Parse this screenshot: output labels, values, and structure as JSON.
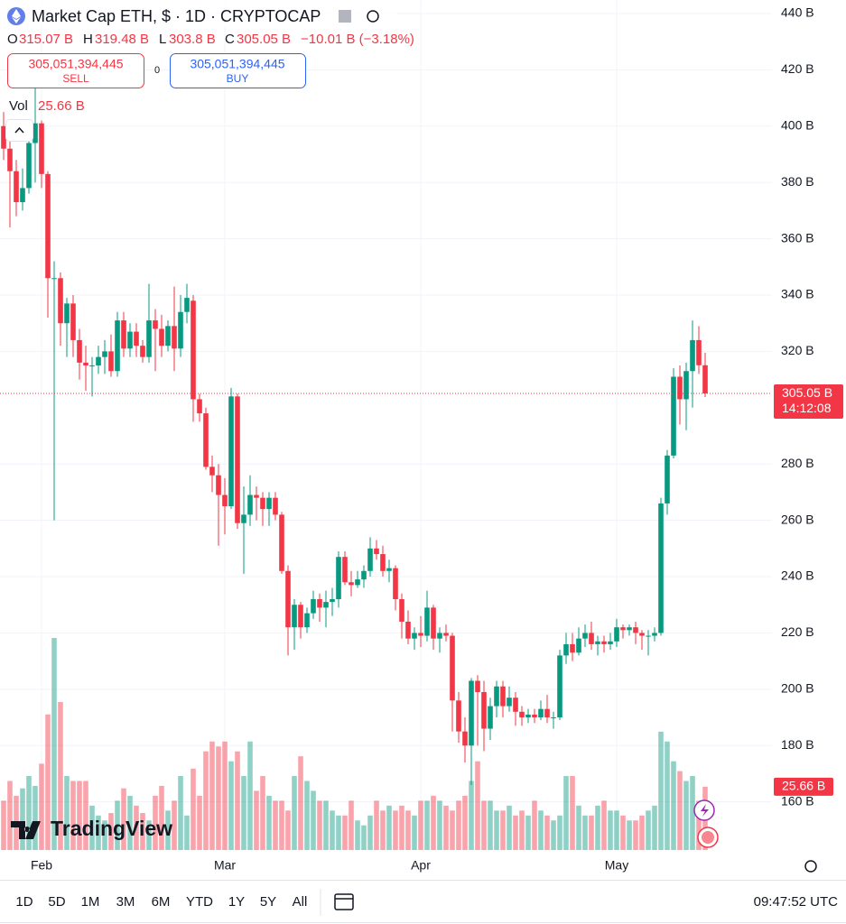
{
  "chart_data": {
    "type": "candlestick",
    "title": "Market Cap ETH, $ · 1D · CRYPTOCAP",
    "ohlc_keys": [
      "O",
      "H",
      "L",
      "C"
    ],
    "value_labels": {
      "o": "315.07 B",
      "h": "319.48 B",
      "l": "303.8 B",
      "c": "305.05 B",
      "v": "25.66 B"
    },
    "change_label": "−10.01 B (−3.18%)",
    "volume_title": "Vol",
    "countdown": "14:12:08",
    "up_color": "#089981",
    "down_color": "#f23645",
    "ylim": [
      142.9,
      444.8
    ],
    "yticks": [
      {
        "value": 160,
        "label": "160 B"
      },
      {
        "value": 180,
        "label": "180 B"
      },
      {
        "value": 200,
        "label": "200 B"
      },
      {
        "value": 220,
        "label": "220 B"
      },
      {
        "value": 240,
        "label": "240 B"
      },
      {
        "value": 260,
        "label": "260 B"
      },
      {
        "value": 280,
        "label": "280 B"
      },
      {
        "value": 320,
        "label": "320 B"
      },
      {
        "value": 340,
        "label": "340 B"
      },
      {
        "value": 360,
        "label": "360 B"
      },
      {
        "value": 380,
        "label": "380 B"
      },
      {
        "value": 400,
        "label": "400 B"
      },
      {
        "value": 420,
        "label": "420 B"
      },
      {
        "value": 440,
        "label": "440 B"
      }
    ],
    "xticks": [
      {
        "value": 6,
        "label": "Feb"
      },
      {
        "value": 35,
        "label": "Mar"
      },
      {
        "value": 66,
        "label": "Apr"
      },
      {
        "value": 97,
        "label": "May"
      }
    ],
    "grid": true,
    "candles": [
      {
        "o": 400,
        "h": 405,
        "l": 388,
        "c": 392,
        "v": 20
      },
      {
        "o": 392,
        "h": 395,
        "l": 364,
        "c": 384,
        "v": 28
      },
      {
        "o": 384,
        "h": 388,
        "l": 368,
        "c": 373,
        "v": 22
      },
      {
        "o": 373,
        "h": 385,
        "l": 370,
        "c": 378,
        "v": 25
      },
      {
        "o": 378,
        "h": 396,
        "l": 376,
        "c": 394,
        "v": 30
      },
      {
        "o": 394,
        "h": 414,
        "l": 380,
        "c": 401,
        "v": 26
      },
      {
        "o": 401,
        "h": 402,
        "l": 378,
        "c": 383,
        "v": 35
      },
      {
        "o": 383,
        "h": 384,
        "l": 332,
        "c": 346,
        "v": 55
      },
      {
        "o": 346,
        "h": 352,
        "l": 260,
        "c": 346,
        "v": 86
      },
      {
        "o": 346,
        "h": 348,
        "l": 322,
        "c": 330,
        "v": 60
      },
      {
        "o": 330,
        "h": 339,
        "l": 318,
        "c": 337,
        "v": 30
      },
      {
        "o": 337,
        "h": 340,
        "l": 318,
        "c": 324,
        "v": 28
      },
      {
        "o": 324,
        "h": 328,
        "l": 310,
        "c": 316,
        "v": 28
      },
      {
        "o": 316,
        "h": 322,
        "l": 306,
        "c": 315,
        "v": 28
      },
      {
        "o": 315,
        "h": 318,
        "l": 304,
        "c": 315,
        "v": 18
      },
      {
        "o": 315,
        "h": 322,
        "l": 312,
        "c": 318,
        "v": 14
      },
      {
        "o": 318,
        "h": 324,
        "l": 312,
        "c": 320,
        "v": 12
      },
      {
        "o": 320,
        "h": 326,
        "l": 311,
        "c": 313,
        "v": 15
      },
      {
        "o": 313,
        "h": 334,
        "l": 311,
        "c": 331,
        "v": 20
      },
      {
        "o": 331,
        "h": 334,
        "l": 318,
        "c": 321,
        "v": 25
      },
      {
        "o": 321,
        "h": 330,
        "l": 318,
        "c": 327,
        "v": 22
      },
      {
        "o": 327,
        "h": 330,
        "l": 318,
        "c": 322,
        "v": 18
      },
      {
        "o": 322,
        "h": 324,
        "l": 316,
        "c": 318,
        "v": 15
      },
      {
        "o": 318,
        "h": 344,
        "l": 316,
        "c": 331,
        "v": 12
      },
      {
        "o": 331,
        "h": 335,
        "l": 313,
        "c": 328,
        "v": 22
      },
      {
        "o": 328,
        "h": 333,
        "l": 318,
        "c": 322,
        "v": 26
      },
      {
        "o": 322,
        "h": 331,
        "l": 320,
        "c": 329,
        "v": 16
      },
      {
        "o": 329,
        "h": 343,
        "l": 313,
        "c": 321,
        "v": 20
      },
      {
        "o": 321,
        "h": 340,
        "l": 318,
        "c": 334,
        "v": 30
      },
      {
        "o": 334,
        "h": 344,
        "l": 330,
        "c": 339,
        "v": 14
      },
      {
        "o": 338,
        "h": 340,
        "l": 295,
        "c": 303,
        "v": 33
      },
      {
        "o": 303,
        "h": 305,
        "l": 295,
        "c": 298,
        "v": 22
      },
      {
        "o": 298,
        "h": 300,
        "l": 278,
        "c": 279,
        "v": 40
      },
      {
        "o": 279,
        "h": 283,
        "l": 270,
        "c": 276,
        "v": 44
      },
      {
        "o": 276,
        "h": 280,
        "l": 251,
        "c": 269,
        "v": 42
      },
      {
        "o": 269,
        "h": 275,
        "l": 255,
        "c": 265,
        "v": 44
      },
      {
        "o": 265,
        "h": 307,
        "l": 264,
        "c": 304,
        "v": 36
      },
      {
        "o": 304,
        "h": 305,
        "l": 257,
        "c": 259,
        "v": 40
      },
      {
        "o": 259,
        "h": 272,
        "l": 241,
        "c": 262,
        "v": 30
      },
      {
        "o": 262,
        "h": 276,
        "l": 258,
        "c": 269,
        "v": 44
      },
      {
        "o": 269,
        "h": 272,
        "l": 260,
        "c": 268,
        "v": 24
      },
      {
        "o": 268,
        "h": 270,
        "l": 258,
        "c": 264,
        "v": 30
      },
      {
        "o": 264,
        "h": 270,
        "l": 258,
        "c": 268,
        "v": 22
      },
      {
        "o": 268,
        "h": 270,
        "l": 260,
        "c": 262,
        "v": 20
      },
      {
        "o": 262,
        "h": 263,
        "l": 241,
        "c": 242,
        "v": 20
      },
      {
        "o": 242,
        "h": 244,
        "l": 212,
        "c": 222,
        "v": 16
      },
      {
        "o": 222,
        "h": 232,
        "l": 214,
        "c": 230,
        "v": 30
      },
      {
        "o": 230,
        "h": 231,
        "l": 218,
        "c": 222,
        "v": 38
      },
      {
        "o": 222,
        "h": 229,
        "l": 220,
        "c": 227,
        "v": 28
      },
      {
        "o": 227,
        "h": 235,
        "l": 225,
        "c": 232,
        "v": 24
      },
      {
        "o": 232,
        "h": 234,
        "l": 224,
        "c": 229,
        "v": 20
      },
      {
        "o": 229,
        "h": 235,
        "l": 222,
        "c": 231,
        "v": 20
      },
      {
        "o": 231,
        "h": 236,
        "l": 226,
        "c": 232,
        "v": 16
      },
      {
        "o": 232,
        "h": 249,
        "l": 229,
        "c": 247,
        "v": 14
      },
      {
        "o": 247,
        "h": 249,
        "l": 237,
        "c": 238,
        "v": 14
      },
      {
        "o": 238,
        "h": 242,
        "l": 233,
        "c": 237,
        "v": 20
      },
      {
        "o": 237,
        "h": 242,
        "l": 236,
        "c": 239,
        "v": 12
      },
      {
        "o": 239,
        "h": 244,
        "l": 236,
        "c": 242,
        "v": 10
      },
      {
        "o": 242,
        "h": 254,
        "l": 240,
        "c": 250,
        "v": 14
      },
      {
        "o": 250,
        "h": 253,
        "l": 246,
        "c": 248,
        "v": 20
      },
      {
        "o": 248,
        "h": 251,
        "l": 240,
        "c": 242,
        "v": 16
      },
      {
        "o": 242,
        "h": 246,
        "l": 238,
        "c": 243,
        "v": 18
      },
      {
        "o": 243,
        "h": 244,
        "l": 228,
        "c": 232,
        "v": 16
      },
      {
        "o": 232,
        "h": 234,
        "l": 218,
        "c": 224,
        "v": 18
      },
      {
        "o": 224,
        "h": 228,
        "l": 216,
        "c": 218,
        "v": 16
      },
      {
        "o": 218,
        "h": 222,
        "l": 214,
        "c": 220,
        "v": 14
      },
      {
        "o": 220,
        "h": 226,
        "l": 215,
        "c": 219,
        "v": 20
      },
      {
        "o": 219,
        "h": 235,
        "l": 217,
        "c": 229,
        "v": 20
      },
      {
        "o": 229,
        "h": 230,
        "l": 214,
        "c": 218,
        "v": 22
      },
      {
        "o": 218,
        "h": 222,
        "l": 213,
        "c": 220,
        "v": 20
      },
      {
        "o": 220,
        "h": 223,
        "l": 217,
        "c": 219,
        "v": 18
      },
      {
        "o": 219,
        "h": 220,
        "l": 185,
        "c": 196,
        "v": 16
      },
      {
        "o": 196,
        "h": 199,
        "l": 181,
        "c": 185,
        "v": 20
      },
      {
        "o": 185,
        "h": 190,
        "l": 174,
        "c": 180,
        "v": 22
      },
      {
        "o": 180,
        "h": 204,
        "l": 166,
        "c": 203,
        "v": 28
      },
      {
        "o": 203,
        "h": 205,
        "l": 180,
        "c": 199,
        "v": 36
      },
      {
        "o": 199,
        "h": 203,
        "l": 178,
        "c": 186,
        "v": 20
      },
      {
        "o": 186,
        "h": 197,
        "l": 182,
        "c": 194,
        "v": 20
      },
      {
        "o": 194,
        "h": 203,
        "l": 190,
        "c": 201,
        "v": 16
      },
      {
        "o": 201,
        "h": 203,
        "l": 190,
        "c": 194,
        "v": 16
      },
      {
        "o": 194,
        "h": 201,
        "l": 192,
        "c": 197,
        "v": 18
      },
      {
        "o": 197,
        "h": 199,
        "l": 187,
        "c": 192,
        "v": 14
      },
      {
        "o": 192,
        "h": 194,
        "l": 187,
        "c": 190,
        "v": 16
      },
      {
        "o": 190,
        "h": 193,
        "l": 188,
        "c": 191,
        "v": 14
      },
      {
        "o": 191,
        "h": 193,
        "l": 188,
        "c": 190,
        "v": 20
      },
      {
        "o": 190,
        "h": 196,
        "l": 189,
        "c": 193,
        "v": 16
      },
      {
        "o": 193,
        "h": 198,
        "l": 188,
        "c": 190,
        "v": 14
      },
      {
        "o": 190,
        "h": 192,
        "l": 186,
        "c": 190,
        "v": 12
      },
      {
        "o": 190,
        "h": 214,
        "l": 189,
        "c": 212,
        "v": 14
      },
      {
        "o": 212,
        "h": 220,
        "l": 209,
        "c": 216,
        "v": 30
      },
      {
        "o": 216,
        "h": 220,
        "l": 210,
        "c": 213,
        "v": 30
      },
      {
        "o": 213,
        "h": 222,
        "l": 212,
        "c": 218,
        "v": 18
      },
      {
        "o": 218,
        "h": 223,
        "l": 215,
        "c": 220,
        "v": 14
      },
      {
        "o": 220,
        "h": 224,
        "l": 214,
        "c": 216,
        "v": 14
      },
      {
        "o": 216,
        "h": 219,
        "l": 212,
        "c": 217,
        "v": 18
      },
      {
        "o": 217,
        "h": 219,
        "l": 213,
        "c": 216,
        "v": 20
      },
      {
        "o": 216,
        "h": 220,
        "l": 214,
        "c": 217,
        "v": 16
      },
      {
        "o": 217,
        "h": 225,
        "l": 215,
        "c": 222,
        "v": 16
      },
      {
        "o": 222,
        "h": 223,
        "l": 218,
        "c": 221,
        "v": 14
      },
      {
        "o": 221,
        "h": 223,
        "l": 219,
        "c": 222,
        "v": 12
      },
      {
        "o": 222,
        "h": 224,
        "l": 216,
        "c": 220,
        "v": 12
      },
      {
        "o": 220,
        "h": 221,
        "l": 214,
        "c": 219,
        "v": 14
      },
      {
        "o": 219,
        "h": 221,
        "l": 212,
        "c": 219,
        "v": 16
      },
      {
        "o": 219,
        "h": 222,
        "l": 217,
        "c": 220,
        "v": 18
      },
      {
        "o": 220,
        "h": 268,
        "l": 219,
        "c": 266,
        "v": 48
      },
      {
        "o": 266,
        "h": 285,
        "l": 262,
        "c": 283,
        "v": 44
      },
      {
        "o": 283,
        "h": 314,
        "l": 282,
        "c": 311,
        "v": 36
      },
      {
        "o": 311,
        "h": 315,
        "l": 294,
        "c": 303,
        "v": 32
      },
      {
        "o": 303,
        "h": 316,
        "l": 292,
        "c": 313,
        "v": 28
      },
      {
        "o": 313,
        "h": 331,
        "l": 300,
        "c": 324,
        "v": 30
      },
      {
        "o": 324,
        "h": 329,
        "l": 312,
        "c": 315.07,
        "v": 20
      },
      {
        "o": 315.07,
        "h": 319.48,
        "l": 303.8,
        "c": 305.05,
        "v": 25.66
      }
    ]
  },
  "order_panel": {
    "sell_price": "305,051,394,445",
    "sell_label": "SELL",
    "spread": "0",
    "buy_price": "305,051,394,445",
    "buy_label": "BUY"
  },
  "toolbar": {
    "timeframes": [
      "1D",
      "5D",
      "1M",
      "3M",
      "6M",
      "YTD",
      "1Y",
      "5Y",
      "All"
    ],
    "clock": "09:47:52 UTC",
    "brand": "TradingView"
  }
}
